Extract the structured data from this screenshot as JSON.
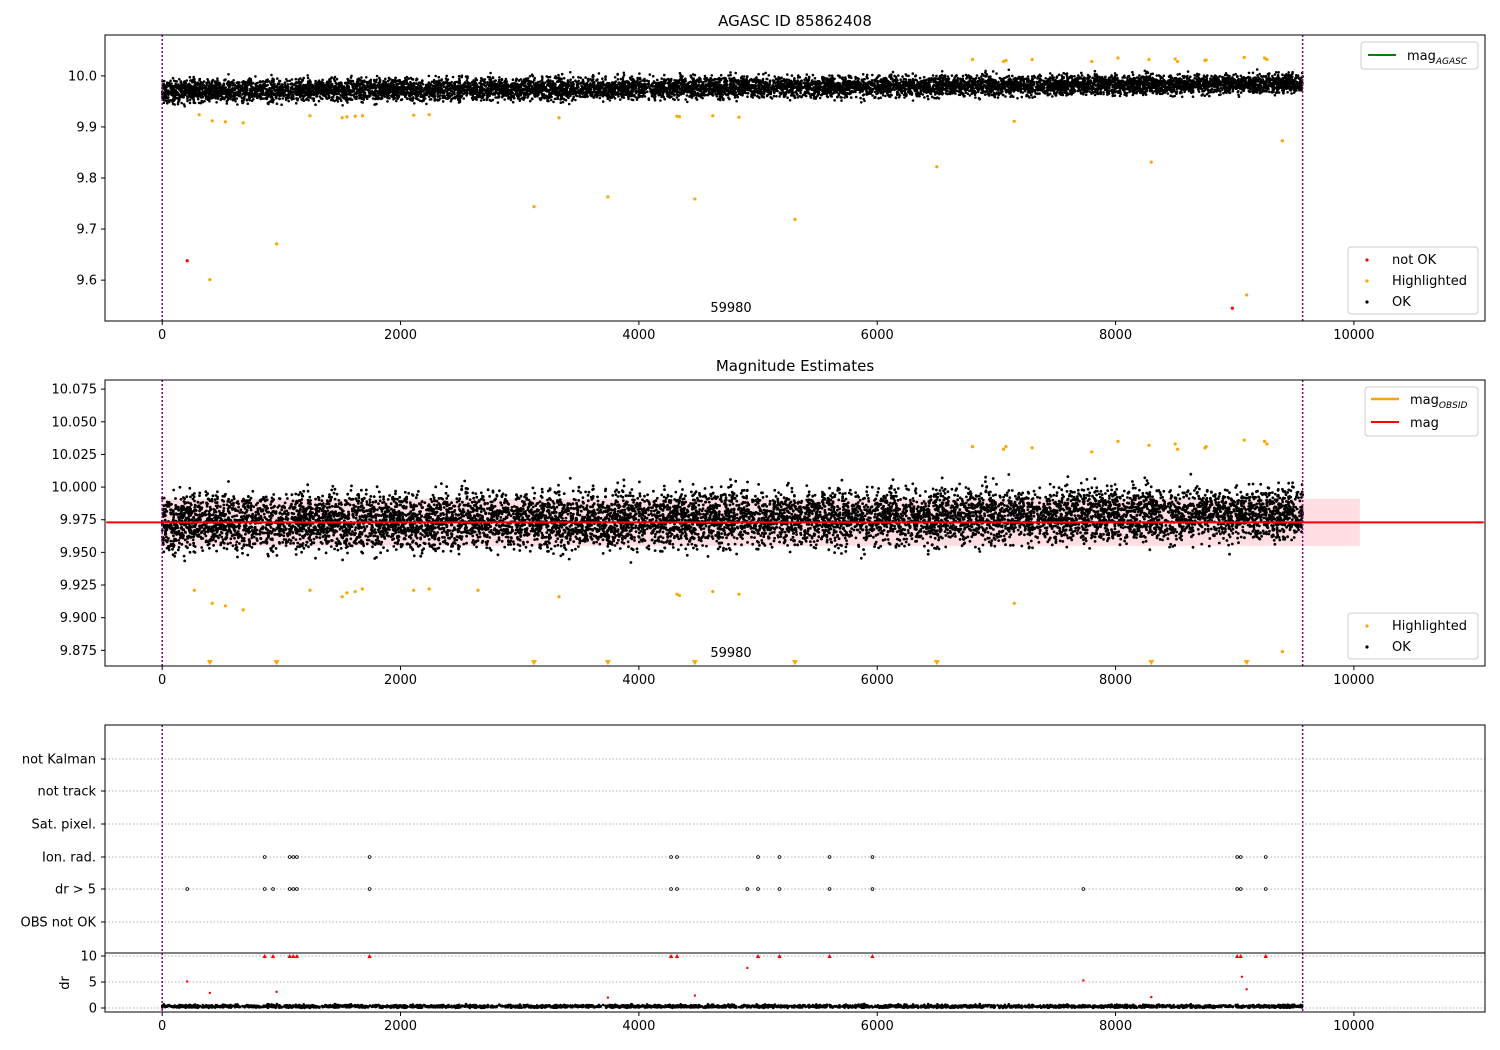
{
  "figure": {
    "panels": [
      {
        "title": "AGASC ID 85862408",
        "xlim": [
          -480,
          11100
        ],
        "ylim": [
          9.52,
          10.08
        ],
        "yticks": [
          "9.6",
          "9.7",
          "9.8",
          "9.9",
          "10.0"
        ],
        "xticks": [
          "0",
          "2000",
          "4000",
          "6000",
          "8000",
          "10000"
        ],
        "center_label": "59980",
        "legend_upper": [
          {
            "label": "mag",
            "subscript": "AGASC",
            "color": "#008000"
          }
        ],
        "legend_lower": [
          {
            "label": "not OK",
            "color": "#ff0000"
          },
          {
            "label": "Highlighted",
            "color": "#ffa500"
          },
          {
            "label": "OK",
            "color": "#000000"
          }
        ]
      },
      {
        "title": "Magnitude Estimates",
        "xlim": [
          -480,
          11100
        ],
        "ylim": [
          9.863,
          10.082
        ],
        "yticks": [
          "9.875",
          "9.900",
          "9.925",
          "9.950",
          "9.975",
          "10.000",
          "10.025",
          "10.050",
          "10.075"
        ],
        "xticks": [
          "0",
          "2000",
          "4000",
          "6000",
          "8000",
          "10000"
        ],
        "center_label": "59980",
        "legend_upper": [
          {
            "label": "mag",
            "subscript": "OBSID",
            "color": "#ffa500"
          },
          {
            "label": "mag",
            "subscript": "",
            "color": "#ff0000"
          }
        ],
        "legend_lower": [
          {
            "label": "Highlighted",
            "color": "#ffa500"
          },
          {
            "label": "OK",
            "color": "#000000"
          }
        ]
      },
      {
        "flag_labels": [
          "not Kalman",
          "not track",
          "Sat. pixel.",
          "Ion. rad.",
          "dr > 5",
          "OBS not OK"
        ],
        "dr_label": "dr",
        "dr_yticks": [
          "0",
          "5",
          "10"
        ],
        "xticks": [
          "0",
          "2000",
          "4000",
          "6000",
          "8000",
          "10000"
        ]
      }
    ]
  },
  "chart_data": [
    {
      "type": "scatter",
      "title": "AGASC ID 85862408",
      "xlabel": "",
      "ylabel": "",
      "xlim": [
        -480,
        11100
      ],
      "ylim": [
        9.52,
        10.08
      ],
      "grid": false,
      "legend_placement": [
        "upper right",
        "lower right"
      ],
      "lines": [
        {
          "name": "mag_AGASC",
          "color": "#008000"
        }
      ],
      "vlines": [
        0,
        9570
      ],
      "ok_band": {
        "x_range": [
          0,
          9570
        ],
        "y_start": [
          9.93,
          10.01
        ],
        "y_end": [
          9.95,
          10.02
        ],
        "count": 9500
      },
      "series": [
        {
          "name": "not OK",
          "color": "#ff0000",
          "points": [
            [
              210,
              9.638
            ],
            [
              8980,
              9.545
            ]
          ]
        },
        {
          "name": "Highlighted",
          "color": "#ffa500",
          "points": [
            [
              310,
              9.924
            ],
            [
              420,
              9.912
            ],
            [
              530,
              9.91
            ],
            [
              680,
              9.908
            ],
            [
              1240,
              9.922
            ],
            [
              1510,
              9.918
            ],
            [
              1550,
              9.92
            ],
            [
              1620,
              9.921
            ],
            [
              1680,
              9.922
            ],
            [
              2110,
              9.923
            ],
            [
              2240,
              9.924
            ],
            [
              3330,
              9.918
            ],
            [
              4320,
              9.921
            ],
            [
              4340,
              9.92
            ],
            [
              4620,
              9.922
            ],
            [
              4840,
              9.919
            ],
            [
              7150,
              9.911
            ],
            [
              400,
              9.601
            ],
            [
              960,
              9.671
            ],
            [
              3120,
              9.744
            ],
            [
              3740,
              9.763
            ],
            [
              4470,
              9.759
            ],
            [
              5310,
              9.719
            ],
            [
              6500,
              9.822
            ],
            [
              8300,
              9.831
            ],
            [
              9400,
              9.873
            ],
            [
              9100,
              9.571
            ],
            [
              6800,
              10.032
            ],
            [
              7060,
              10.028
            ],
            [
              7080,
              10.03
            ],
            [
              7300,
              10.032
            ],
            [
              7800,
              10.028
            ],
            [
              8020,
              10.035
            ],
            [
              8280,
              10.032
            ],
            [
              8500,
              10.033
            ],
            [
              8520,
              10.028
            ],
            [
              8750,
              10.03
            ],
            [
              8760,
              10.031
            ],
            [
              9080,
              10.036
            ],
            [
              9250,
              10.035
            ],
            [
              9270,
              10.032
            ]
          ]
        }
      ]
    },
    {
      "type": "scatter",
      "title": "Magnitude Estimates",
      "xlabel": "",
      "ylabel": "",
      "xlim": [
        -480,
        11100
      ],
      "ylim": [
        9.863,
        10.082
      ],
      "grid": false,
      "legend_placement": [
        "upper right",
        "lower right"
      ],
      "mean_line": {
        "name": "mag",
        "y": 9.973,
        "x_range": [
          -480,
          11100
        ],
        "color": "#ff0000"
      },
      "mean_band": {
        "y_range": [
          9.955,
          9.991
        ],
        "x_range": [
          -10,
          10050
        ],
        "color": "#ffb6c1"
      },
      "ok_band": {
        "x_range": [
          0,
          9570
        ],
        "y_start": [
          9.925,
          10.02
        ],
        "y_end": [
          9.935,
          10.025
        ],
        "count": 9500
      },
      "vlines": [
        0,
        9570
      ],
      "series": [
        {
          "name": "Highlighted",
          "color": "#ffa500",
          "points": [
            [
              270,
              9.921
            ],
            [
              420,
              9.911
            ],
            [
              530,
              9.909
            ],
            [
              680,
              9.906
            ],
            [
              1240,
              9.921
            ],
            [
              1510,
              9.916
            ],
            [
              1550,
              9.919
            ],
            [
              1620,
              9.92
            ],
            [
              1680,
              9.922
            ],
            [
              2110,
              9.921
            ],
            [
              2240,
              9.922
            ],
            [
              2650,
              9.921
            ],
            [
              3330,
              9.916
            ],
            [
              4320,
              9.918
            ],
            [
              4340,
              9.917
            ],
            [
              4620,
              9.92
            ],
            [
              4840,
              9.918
            ],
            [
              7150,
              9.911
            ],
            [
              9400,
              9.874
            ],
            [
              6800,
              10.031
            ],
            [
              7060,
              10.029
            ],
            [
              7080,
              10.031
            ],
            [
              7300,
              10.03
            ],
            [
              7800,
              10.027
            ],
            [
              8020,
              10.035
            ],
            [
              8280,
              10.032
            ],
            [
              8500,
              10.033
            ],
            [
              8520,
              10.029
            ],
            [
              8750,
              10.03
            ],
            [
              8760,
              10.031
            ],
            [
              9080,
              10.036
            ],
            [
              9250,
              10.035
            ],
            [
              9270,
              10.033
            ]
          ]
        },
        {
          "name": "below-axis markers",
          "color": "#ffa500",
          "points": [
            [
              400,
              9.866
            ],
            [
              960,
              9.866
            ],
            [
              3120,
              9.866
            ],
            [
              3740,
              9.866
            ],
            [
              4470,
              9.866
            ],
            [
              5310,
              9.866
            ],
            [
              6500,
              9.866
            ],
            [
              8300,
              9.866
            ],
            [
              9100,
              9.866
            ]
          ]
        }
      ]
    },
    {
      "type": "scatter",
      "title": "",
      "xlabel": "",
      "ylabel": "dr",
      "xlim": [
        -480,
        11100
      ],
      "ylim": [
        -1,
        11
      ],
      "grid": true,
      "vlines": [
        0,
        9570
      ],
      "flag_rows": [
        {
          "name": "not Kalman",
          "x": []
        },
        {
          "name": "not track",
          "x": []
        },
        {
          "name": "Sat. pixel.",
          "x": []
        },
        {
          "name": "Ion. rad.",
          "x": [
            860,
            1070,
            1100,
            1130,
            1740,
            4270,
            4320,
            5000,
            5180,
            5600,
            5960,
            9020,
            9050,
            9260
          ]
        },
        {
          "name": "dr > 5",
          "x": [
            210,
            860,
            930,
            1070,
            1100,
            1130,
            1740,
            4270,
            4320,
            4910,
            5000,
            5180,
            5600,
            5960,
            7730,
            9020,
            9050,
            9260
          ]
        },
        {
          "name": "OBS not OK",
          "x": []
        }
      ],
      "dr_noise": {
        "x_range": [
          0,
          9570
        ],
        "y_range": [
          0,
          1.2
        ],
        "count": 3000
      },
      "dr_points": [
        [
          210,
          5.1
        ],
        [
          400,
          2.9
        ],
        [
          960,
          3.1
        ],
        [
          3740,
          2.0
        ],
        [
          4470,
          2.4
        ],
        [
          4910,
          7.7
        ],
        [
          7730,
          5.3
        ],
        [
          9060,
          6.0
        ],
        [
          9100,
          3.6
        ],
        [
          8300,
          2.1
        ]
      ],
      "dr_clipped": [
        860,
        930,
        1070,
        1100,
        1130,
        1740,
        4270,
        4320,
        5000,
        5180,
        5600,
        5960,
        9020,
        9050,
        9260
      ]
    }
  ]
}
